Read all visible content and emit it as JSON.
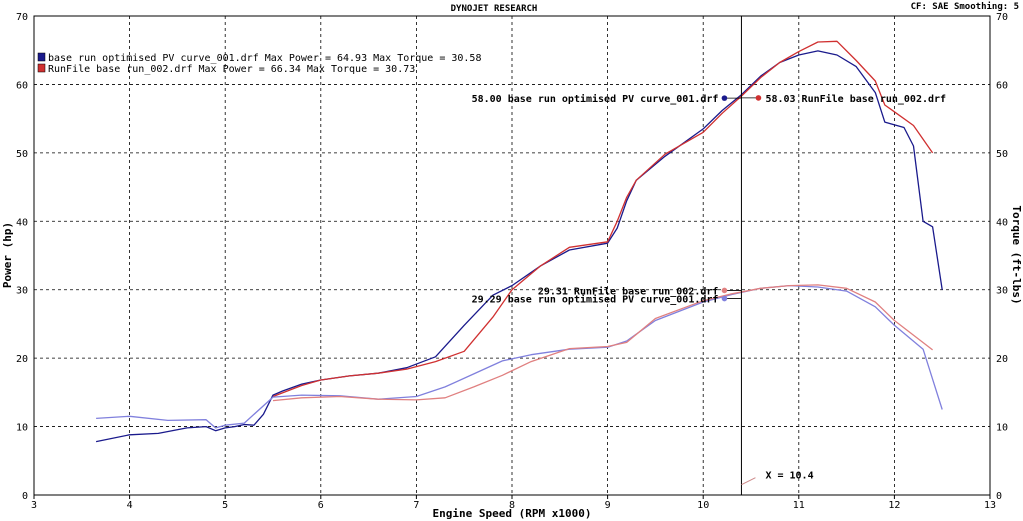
{
  "header": {
    "title": "DYNOJET RESEARCH",
    "settings": "CF: SAE  Smoothing: 5"
  },
  "chart_data": {
    "type": "line",
    "xlabel": "Engine Speed (RPM x1000)",
    "ylabel_left": "Power (hp)",
    "ylabel_right": "Torque (ft-lbs)",
    "xlim": [
      3,
      13
    ],
    "ylim_left": [
      0,
      70
    ],
    "ylim_right": [
      0,
      70
    ],
    "x_ticks": [
      "3",
      "4",
      "5",
      "6",
      "7",
      "8",
      "9",
      "10",
      "11",
      "12",
      "13"
    ],
    "y_ticks": [
      "0",
      "10",
      "20",
      "30",
      "40",
      "50",
      "60",
      "70"
    ],
    "grid": true,
    "legend_placement": "top-left",
    "legend": [
      "base run optimised PV curve_001.drf Max Power = 64.93    Max Torque = 30.58",
      "RunFile base run_002.drf Max Power = 66.34    Max Torque = 30.73"
    ],
    "series": [
      {
        "name": "base run optimised PV curve_001.drf",
        "measure": "power",
        "color": "#1a1a8c",
        "x": [
          3.65,
          4.0,
          4.3,
          4.6,
          4.8,
          4.9,
          5.0,
          5.1,
          5.2,
          5.3,
          5.4,
          5.5,
          5.6,
          5.8,
          6.0,
          6.3,
          6.6,
          6.9,
          7.2,
          7.5,
          7.8,
          8.0,
          8.3,
          8.6,
          9.0,
          9.1,
          9.2,
          9.3,
          9.6,
          10.0,
          10.2,
          10.4,
          10.6,
          10.8,
          11.0,
          11.2,
          11.4,
          11.6,
          11.8,
          11.9,
          12.1,
          12.2,
          12.3,
          12.4,
          12.5
        ],
        "y": [
          7.8,
          8.8,
          9.0,
          9.8,
          10.0,
          9.4,
          9.8,
          10.0,
          10.3,
          10.2,
          11.8,
          14.6,
          15.2,
          16.2,
          16.8,
          17.4,
          17.8,
          18.6,
          20.2,
          24.8,
          29.2,
          30.6,
          33.5,
          35.8,
          36.8,
          39.0,
          43.0,
          46.0,
          49.5,
          53.5,
          56.2,
          58.5,
          61.2,
          63.2,
          64.3,
          64.9,
          64.3,
          62.6,
          58.8,
          54.5,
          53.7,
          51.0,
          40.0,
          39.2,
          30.0
        ]
      },
      {
        "name": "RunFile base run_002.drf",
        "measure": "power",
        "color": "#d03030",
        "x": [
          5.5,
          5.8,
          6.0,
          6.3,
          6.6,
          6.9,
          7.2,
          7.5,
          7.8,
          8.0,
          8.3,
          8.6,
          9.0,
          9.1,
          9.2,
          9.3,
          9.6,
          10.0,
          10.2,
          10.4,
          10.6,
          10.8,
          11.0,
          11.2,
          11.4,
          11.6,
          11.8,
          11.9,
          12.0,
          12.2,
          12.4
        ],
        "y": [
          14.4,
          16.0,
          16.8,
          17.4,
          17.8,
          18.4,
          19.5,
          21.0,
          26.0,
          30.0,
          33.5,
          36.2,
          37.0,
          40.0,
          43.5,
          46.0,
          49.8,
          53.0,
          55.8,
          58.3,
          61.0,
          63.2,
          64.8,
          66.2,
          66.3,
          63.5,
          60.5,
          57.0,
          56.0,
          54.0,
          50.0
        ]
      },
      {
        "name": "base run optimised PV curve_001.drf",
        "measure": "torque",
        "color": "#8080dd",
        "x": [
          3.65,
          4.0,
          4.4,
          4.8,
          4.9,
          5.0,
          5.2,
          5.5,
          5.8,
          6.2,
          6.6,
          7.0,
          7.3,
          7.6,
          7.9,
          8.2,
          8.6,
          9.0,
          9.2,
          9.5,
          10.0,
          10.3,
          10.6,
          10.9,
          11.2,
          11.5,
          11.8,
          12.0,
          12.3,
          12.5
        ],
        "y": [
          11.2,
          11.5,
          10.9,
          11.0,
          9.8,
          10.2,
          10.5,
          14.3,
          14.6,
          14.5,
          14.0,
          14.4,
          15.8,
          17.7,
          19.6,
          20.5,
          21.3,
          21.6,
          22.5,
          25.5,
          28.2,
          29.3,
          30.2,
          30.6,
          30.4,
          29.8,
          27.5,
          24.8,
          21.3,
          12.5
        ]
      },
      {
        "name": "RunFile base run_002.drf",
        "measure": "torque",
        "color": "#e08080",
        "x": [
          5.5,
          5.8,
          6.2,
          6.6,
          7.0,
          7.3,
          7.6,
          7.9,
          8.2,
          8.6,
          9.0,
          9.2,
          9.5,
          10.0,
          10.3,
          10.6,
          10.9,
          11.2,
          11.5,
          11.8,
          12.0,
          12.4
        ],
        "y": [
          13.8,
          14.2,
          14.4,
          14.0,
          13.9,
          14.2,
          15.8,
          17.5,
          19.5,
          21.4,
          21.7,
          22.3,
          25.8,
          28.4,
          29.4,
          30.2,
          30.6,
          30.7,
          30.2,
          28.2,
          25.5,
          21.2
        ]
      }
    ],
    "cursor": {
      "x": 10.4,
      "label": "X = 10.4",
      "readouts": [
        {
          "text": "58.00 base run optimised PV curve_001.drf",
          "value": 58.0,
          "side": "left",
          "color": "#1a1a8c"
        },
        {
          "text": "58.03 RunFile base run_002.drf",
          "value": 58.03,
          "side": "right",
          "color": "#d03030"
        },
        {
          "text": "29.31 RunFile base run_002.drf",
          "value": 29.31,
          "side": "left",
          "color": "#e08080"
        },
        {
          "text": "29.29 base run optimised PV curve_001.drf",
          "value": 29.29,
          "side": "left",
          "color": "#8080dd"
        }
      ]
    }
  }
}
